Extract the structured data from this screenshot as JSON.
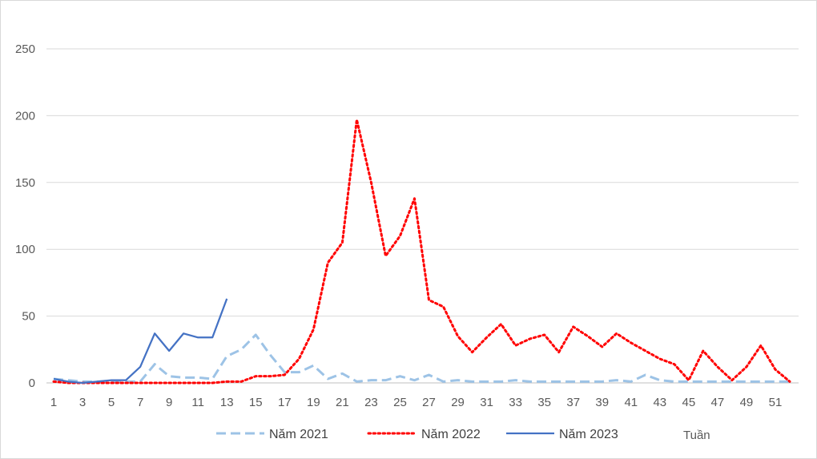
{
  "chart_data": {
    "type": "line",
    "title": "",
    "xlabel": "Tuần",
    "ylabel": "",
    "ylim": [
      0,
      250
    ],
    "xlim": [
      1,
      52
    ],
    "yticks": [
      0,
      50,
      100,
      150,
      200,
      250
    ],
    "xtick_labels": [
      "1",
      "3",
      "5",
      "7",
      "9",
      "11",
      "13",
      "15",
      "17",
      "19",
      "21",
      "23",
      "25",
      "27",
      "29",
      "31",
      "33",
      "35",
      "37",
      "39",
      "41",
      "43",
      "45",
      "47",
      "49",
      "51"
    ],
    "grid": "horizontal",
    "legend_position": "bottom",
    "series": [
      {
        "name": "Năm 2021",
        "color": "#9dc3e6",
        "style": "dashed",
        "x": [
          1,
          2,
          3,
          4,
          5,
          6,
          7,
          8,
          9,
          10,
          11,
          12,
          13,
          14,
          15,
          16,
          17,
          18,
          19,
          20,
          21,
          22,
          23,
          24,
          25,
          26,
          27,
          28,
          29,
          30,
          31,
          32,
          33,
          34,
          35,
          36,
          37,
          38,
          39,
          40,
          41,
          42,
          43,
          44,
          45,
          46,
          47,
          48,
          49,
          50,
          51,
          52
        ],
        "values": [
          3,
          2,
          1,
          1,
          1,
          1,
          1,
          14,
          5,
          4,
          4,
          3,
          20,
          25,
          36,
          21,
          8,
          8,
          13,
          3,
          7,
          1,
          2,
          2,
          5,
          2,
          6,
          1,
          2,
          1,
          1,
          1,
          2,
          1,
          1,
          1,
          1,
          1,
          1,
          2,
          1,
          6,
          2,
          1,
          1,
          1,
          1,
          1,
          1,
          1,
          1,
          1
        ]
      },
      {
        "name": "Năm 2022",
        "color": "#ff0000",
        "style": "dotted",
        "x": [
          1,
          2,
          3,
          4,
          5,
          6,
          7,
          8,
          9,
          10,
          11,
          12,
          13,
          14,
          15,
          16,
          17,
          18,
          19,
          20,
          21,
          22,
          23,
          24,
          25,
          26,
          27,
          28,
          29,
          30,
          31,
          32,
          33,
          34,
          35,
          36,
          37,
          38,
          39,
          40,
          41,
          42,
          43,
          44,
          45,
          46,
          47,
          48,
          49,
          50,
          51,
          52
        ],
        "values": [
          1,
          0,
          0,
          0,
          0,
          0,
          0,
          0,
          0,
          0,
          0,
          0,
          1,
          1,
          5,
          5,
          6,
          18,
          40,
          90,
          105,
          197,
          150,
          95,
          110,
          138,
          62,
          57,
          35,
          23,
          34,
          44,
          28,
          33,
          36,
          23,
          42,
          35,
          27,
          37,
          30,
          24,
          18,
          14,
          2,
          24,
          12,
          2,
          12,
          28,
          10,
          1
        ]
      },
      {
        "name": "Năm 2023",
        "color": "#4472c4",
        "style": "solid",
        "x": [
          1,
          2,
          3,
          4,
          5,
          6,
          7,
          8,
          9,
          10,
          11,
          12,
          13
        ],
        "values": [
          3,
          1,
          0,
          1,
          2,
          2,
          12,
          37,
          24,
          37,
          34,
          34,
          63
        ]
      }
    ]
  }
}
